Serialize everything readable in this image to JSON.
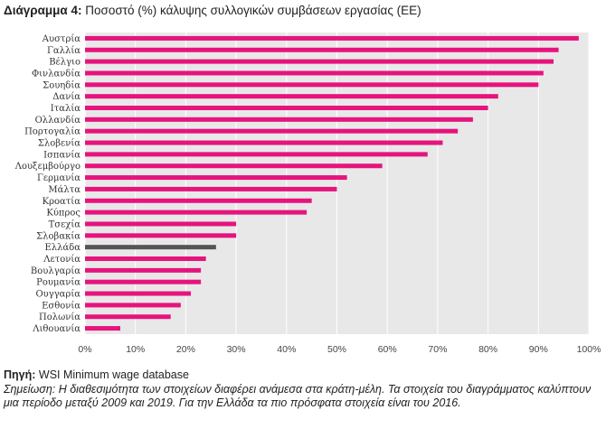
{
  "title": {
    "prefix": "Διάγραμμα 4:",
    "text": "Ποσοστό (%) κάλυψης συλλογικών συμβάσεων εργασίας (ΕΕ)"
  },
  "chart_data": {
    "type": "bar",
    "orientation": "horizontal",
    "categories": [
      "Αυστρία",
      "Γαλλία",
      "Βέλγιο",
      "Φινλανδία",
      "Σουηδία",
      "Δανία",
      "Ιταλία",
      "Ολλανδία",
      "Πορτογαλία",
      "Σλοβενία",
      "Ισπανία",
      "Λουξεμβούργο",
      "Γερμανία",
      "Μάλτα",
      "Κροατία",
      "Κύπρος",
      "Τσεχία",
      "Σλοβακία",
      "Ελλάδα",
      "Λετονία",
      "Βουλγαρία",
      "Ρουμανία",
      "Ουγγαρία",
      "Εσθονία",
      "Πολωνία",
      "Λιθουανία"
    ],
    "values": [
      98,
      94,
      93,
      91,
      90,
      82,
      80,
      77,
      74,
      71,
      68,
      59,
      52,
      50,
      45,
      44,
      30,
      30,
      26,
      24,
      23,
      23,
      21,
      19,
      17,
      7
    ],
    "highlight": "Ελλάδα",
    "xlim": [
      0,
      100
    ],
    "xticks": [
      "0%",
      "10%",
      "20%",
      "30%",
      "40%",
      "50%",
      "60%",
      "70%",
      "80%",
      "90%",
      "100%"
    ],
    "grid": true,
    "colors": {
      "bar": "#e6147d",
      "highlight": "#555555",
      "background": "#e8e8e8",
      "grid": "#ffffff"
    }
  },
  "footer": {
    "source_label": "Πηγή:",
    "source_text": " WSI Minimum wage database",
    "note": "Σημείωση: Η διαθεσιμότητα των στοιχείων διαφέρει ανάμεσα στα κράτη-μέλη. Τα στοιχεία του διαγράμματος καλύπτουν μια περίοδο μεταξύ 2009 και 2019. Για την Ελλάδα τα πιο πρόσφατα στοιχεία είναι του 2016."
  }
}
